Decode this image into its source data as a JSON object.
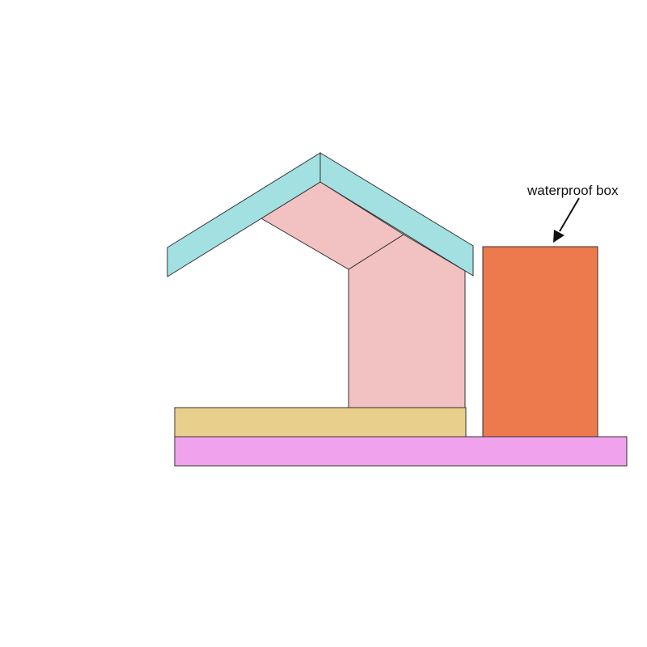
{
  "diagram": {
    "callout": {
      "label": "waterproof box"
    },
    "colors": {
      "roof": "#a2e0e2",
      "wall": "#f2c1c1",
      "floor": "#e8d08c",
      "base": "#f0a3ec",
      "box": "#ed7a4c",
      "outline": "#333333",
      "arrow": "#111111"
    },
    "parts": [
      "roof",
      "wall",
      "floor",
      "base",
      "waterproof-box"
    ]
  }
}
